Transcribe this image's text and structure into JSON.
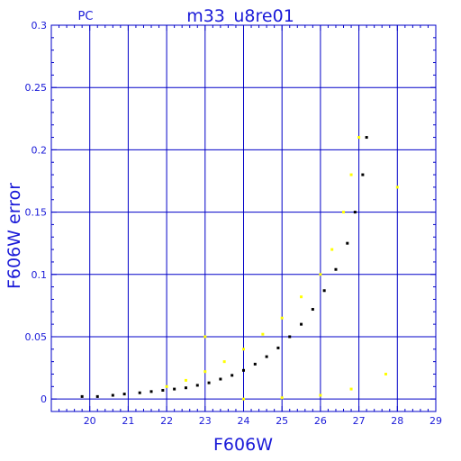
{
  "chart_data": {
    "type": "scatter",
    "title": "m33_u8re01",
    "corner_label": "PC",
    "xlabel": "F606W",
    "ylabel": "F606W error",
    "xlim": [
      19.0,
      29.0
    ],
    "ylim": [
      -0.01,
      0.3
    ],
    "x_ticks": [
      20,
      21,
      22,
      23,
      24,
      25,
      26,
      27,
      28,
      29
    ],
    "y_ticks": [
      0,
      0.05,
      0.1,
      0.15,
      0.2,
      0.25,
      0.3
    ],
    "y_tick_labels": [
      "0",
      "0.05",
      "0.1",
      "0.15",
      "0.2",
      "0.25",
      "0.3"
    ],
    "grid": true,
    "colors": {
      "axes": "#0000c8",
      "text": "#1a1ad8",
      "series_black": "#000000",
      "series_yellow": "#ffff00"
    },
    "series": [
      {
        "color": "black",
        "points": [
          [
            19.8,
            0.002
          ],
          [
            20.2,
            0.002
          ],
          [
            20.6,
            0.003
          ],
          [
            20.9,
            0.004
          ],
          [
            21.3,
            0.005
          ],
          [
            21.6,
            0.006
          ],
          [
            21.9,
            0.007
          ],
          [
            22.2,
            0.008
          ],
          [
            22.5,
            0.009
          ],
          [
            22.8,
            0.011
          ],
          [
            23.1,
            0.013
          ],
          [
            23.4,
            0.016
          ],
          [
            23.7,
            0.019
          ],
          [
            24.0,
            0.023
          ],
          [
            24.3,
            0.028
          ],
          [
            24.6,
            0.034
          ],
          [
            24.9,
            0.041
          ],
          [
            25.2,
            0.05
          ],
          [
            25.5,
            0.06
          ],
          [
            25.8,
            0.072
          ],
          [
            26.1,
            0.087
          ],
          [
            26.4,
            0.104
          ],
          [
            26.7,
            0.125
          ],
          [
            26.9,
            0.15
          ],
          [
            27.1,
            0.18
          ],
          [
            27.2,
            0.21
          ]
        ]
      },
      {
        "color": "yellow",
        "points": [
          [
            22.0,
            0.01
          ],
          [
            22.5,
            0.015
          ],
          [
            23.0,
            0.022
          ],
          [
            23.5,
            0.03
          ],
          [
            24.0,
            0.04
          ],
          [
            24.5,
            0.052
          ],
          [
            25.0,
            0.065
          ],
          [
            25.5,
            0.082
          ],
          [
            26.0,
            0.1
          ],
          [
            26.3,
            0.12
          ],
          [
            26.6,
            0.15
          ],
          [
            26.8,
            0.18
          ],
          [
            27.0,
            0.21
          ],
          [
            24.0,
            0.0
          ],
          [
            25.0,
            0.001
          ],
          [
            26.0,
            0.003
          ],
          [
            26.8,
            0.008
          ],
          [
            27.7,
            0.02
          ],
          [
            28.0,
            0.17
          ],
          [
            23.0,
            0.05
          ]
        ]
      }
    ]
  }
}
